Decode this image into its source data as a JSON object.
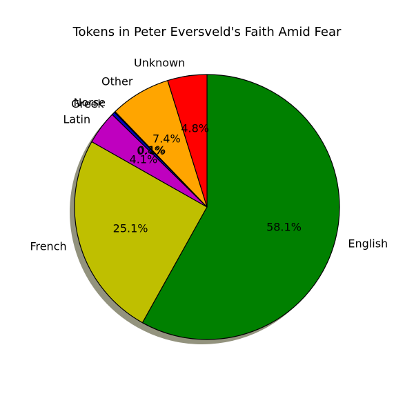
{
  "chart_data": {
    "type": "pie",
    "title": "Tokens in Peter Eversveld's Faith Amid Fear",
    "categories": [
      "English",
      "French",
      "Latin",
      "Greek",
      "Norse",
      "Other",
      "Unknown"
    ],
    "values": [
      58.1,
      25.1,
      4.1,
      0.4,
      0.1,
      7.4,
      4.8
    ],
    "value_labels": [
      "58.1%",
      "25.1%",
      "4.1%",
      "0.4%",
      "0.1%",
      "7.4%",
      "4.8%"
    ],
    "colors": [
      "#008000",
      "#bfbf00",
      "#bf00bf",
      "#0000bf",
      "#000000",
      "#ffa500",
      "#ff0000"
    ],
    "start_angle_deg": 90,
    "direction": "clockwise",
    "shadow": true,
    "edge_color": "#000000"
  }
}
